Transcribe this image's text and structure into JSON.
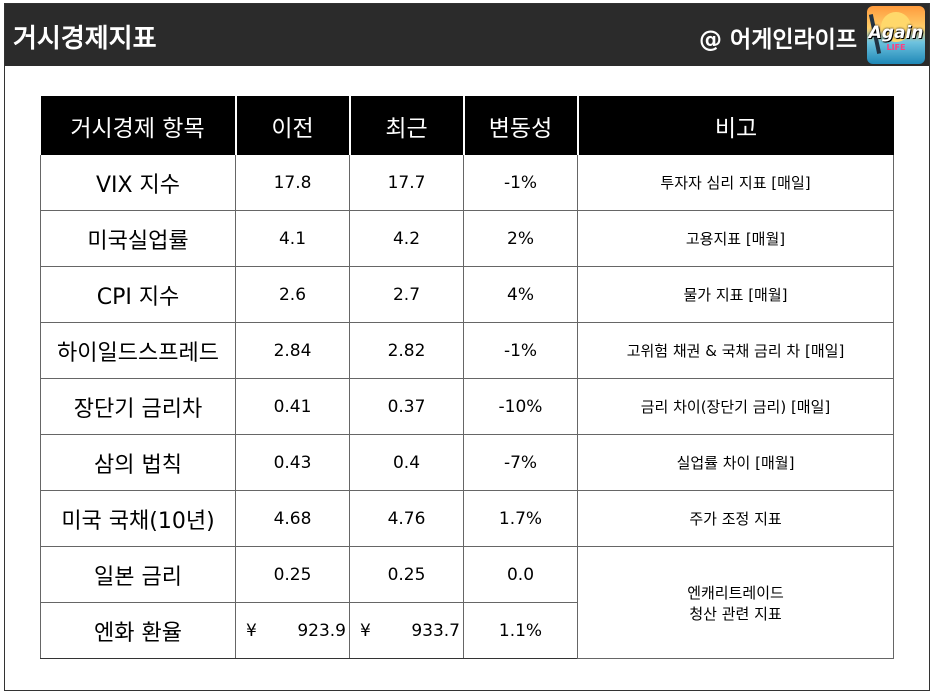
{
  "header": {
    "title": "거시경제지표",
    "brand": "@ 어게인라이프",
    "logo_text": "Again",
    "logo_sub": "LIFE"
  },
  "table": {
    "columns": [
      "거시경제 항목",
      "이전",
      "최근",
      "변동성",
      "비고"
    ],
    "rows": [
      {
        "name": "VIX 지수",
        "prev": "17.8",
        "recent": "17.7",
        "change": "-1%",
        "note": "투자자 심리 지표 [매일]"
      },
      {
        "name": "미국실업률",
        "prev": "4.1",
        "recent": "4.2",
        "change": "2%",
        "note": "고용지표 [매월]"
      },
      {
        "name": "CPI 지수",
        "prev": "2.6",
        "recent": "2.7",
        "change": "4%",
        "note": "물가 지표 [매월]"
      },
      {
        "name": "하이일드스프레드",
        "prev": "2.84",
        "recent": "2.82",
        "change": "-1%",
        "note": "고위험 채권 & 국채 금리 차 [매일]"
      },
      {
        "name": "장단기 금리차",
        "prev": "0.41",
        "recent": "0.37",
        "change": "-10%",
        "note": "금리 차이(장단기 금리) [매일]"
      },
      {
        "name": "삼의 법칙",
        "prev": "0.43",
        "recent": "0.4",
        "change": "-7%",
        "note": "실업률 차이 [매월]"
      },
      {
        "name": "미국 국채(10년)",
        "prev": "4.68",
        "recent": "4.76",
        "change": "1.7%",
        "note": "주가 조정 지표"
      },
      {
        "name": "일본 금리",
        "prev": "0.25",
        "recent": "0.25",
        "change": "0.0"
      },
      {
        "name": "엔화 환율",
        "prev_symbol": "¥",
        "prev": "923.9",
        "recent_symbol": "¥",
        "recent": "933.7",
        "change": "1.1%"
      }
    ],
    "merged_note_line1": "엔캐리트레이드",
    "merged_note_line2": "청산 관련 지표"
  }
}
